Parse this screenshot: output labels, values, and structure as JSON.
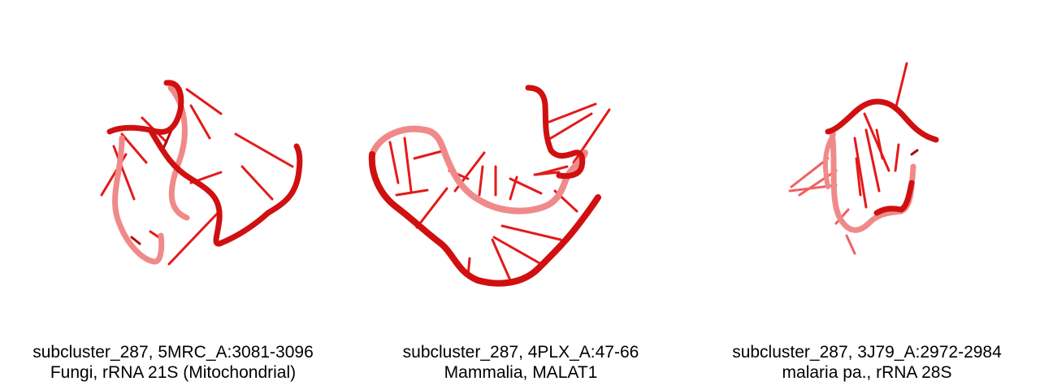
{
  "panels": [
    {
      "caption_line1": "subcluster_287, 5MRC_A:3081-3096",
      "caption_line2": "Fungi, rRNA 21S (Mitochondrial)"
    },
    {
      "caption_line1": "subcluster_287, 4PLX_A:47-66",
      "caption_line2": "Mammalia, MALAT1"
    },
    {
      "caption_line1": "subcluster_287, 3J79_A:2972-2984",
      "caption_line2": "malaria pa., rRNA 28S"
    }
  ],
  "colors": {
    "backbone_dark": "#d01010",
    "backbone_light": "#f08a8a",
    "base": "#e41a1a",
    "background": "#ffffff"
  }
}
